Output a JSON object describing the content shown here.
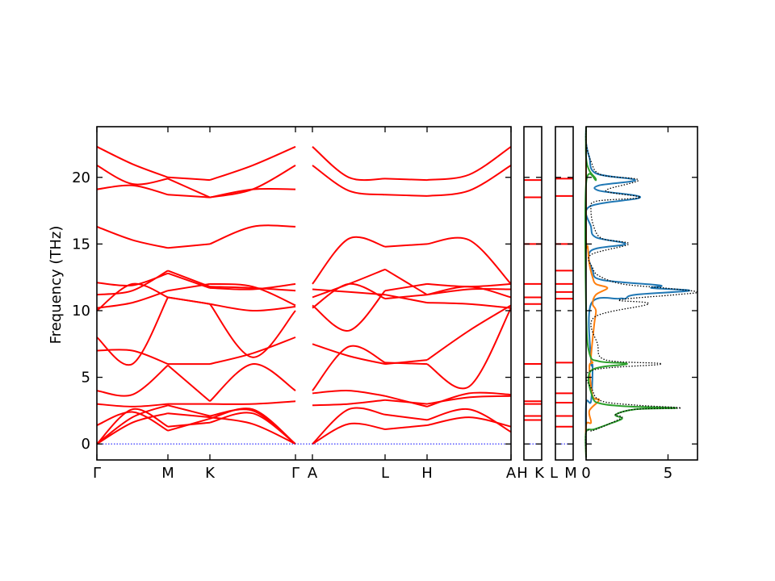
{
  "chart_data": {
    "type": "line",
    "title": "",
    "ylabel": "Frequency (THz)",
    "ylim": [
      -1.2,
      23.8
    ],
    "yticks": [
      0,
      5,
      10,
      15,
      20
    ],
    "colors": {
      "bands": "#ff0000",
      "zero_line": "#0000ff",
      "dos_total": "#000000",
      "dos_1": "#1f77b4",
      "dos_2": "#ff7f0e",
      "dos_3": "#2ca02c"
    },
    "band_panels": [
      {
        "xticks": [
          "Γ",
          "M",
          "K",
          "Γ",
          "A",
          "L",
          "H",
          "A"
        ],
        "segments": [
          {
            "from": "Γ",
            "to": "M",
            "bands": [
              [
                0,
                1.6,
                2.3
              ],
              [
                0,
                2.0,
                2.9
              ],
              [
                0,
                2.6,
                1.3
              ],
              [
                1.4,
                2.4,
                1.0
              ],
              [
                3.0,
                2.8,
                3.0
              ],
              [
                4.0,
                3.7,
                5.9
              ],
              [
                7.0,
                7.0,
                6.0
              ],
              [
                8.0,
                6.0,
                11.0
              ],
              [
                10.0,
                12.0,
                11.0
              ],
              [
                10.2,
                10.6,
                11.5
              ],
              [
                11.2,
                11.5,
                13.0
              ],
              [
                12.1,
                11.9,
                12.8
              ],
              [
                16.3,
                15.3,
                14.7
              ],
              [
                19.1,
                19.4,
                18.7
              ],
              [
                20.9,
                19.5,
                19.9
              ],
              [
                22.3,
                21.0,
                20.0
              ]
            ]
          },
          {
            "from": "M",
            "to": "K",
            "bands": [
              [
                2.3,
                2.0
              ],
              [
                2.9,
                2.1
              ],
              [
                1.3,
                1.6
              ],
              [
                1.0,
                1.9
              ],
              [
                3.0,
                3.0
              ],
              [
                5.9,
                3.2
              ],
              [
                6.0,
                6.0
              ],
              [
                11.0,
                10.5
              ],
              [
                11.0,
                10.5
              ],
              [
                11.5,
                12.0
              ],
              [
                13.0,
                11.8
              ],
              [
                12.8,
                11.7
              ],
              [
                14.7,
                15.0
              ],
              [
                18.7,
                18.5
              ],
              [
                19.9,
                18.5
              ],
              [
                20.0,
                19.8
              ]
            ]
          },
          {
            "from": "K",
            "to": "Γ",
            "bands": [
              [
                2.0,
                1.5,
                0
              ],
              [
                2.1,
                2.5,
                0
              ],
              [
                1.6,
                2.3,
                0
              ],
              [
                1.9,
                2.6,
                0
              ],
              [
                3.0,
                3.0,
                3.2
              ],
              [
                3.2,
                6.0,
                4.0
              ],
              [
                6.0,
                6.8,
                8.0
              ],
              [
                10.5,
                6.5,
                10.0
              ],
              [
                10.5,
                10.0,
                10.3
              ],
              [
                12.0,
                11.8,
                10.4
              ],
              [
                11.8,
                11.7,
                11.5
              ],
              [
                11.7,
                11.6,
                12.0
              ],
              [
                15.0,
                16.3,
                16.3
              ],
              [
                18.5,
                19.1,
                19.1
              ],
              [
                18.5,
                19.1,
                20.9
              ],
              [
                19.8,
                20.9,
                22.3
              ]
            ]
          },
          {
            "from": "A",
            "to": "L",
            "bands": [
              [
                0,
                2.6,
                2.2
              ],
              [
                0,
                1.5,
                1.1
              ],
              [
                2.9,
                3.0,
                3.3
              ],
              [
                3.8,
                4.0,
                3.6
              ],
              [
                4.0,
                7.3,
                6.1
              ],
              [
                7.5,
                6.6,
                6.0
              ],
              [
                10.2,
                12.0,
                10.9
              ],
              [
                10.4,
                8.5,
                11.5
              ],
              [
                11.0,
                12.0,
                13.1
              ],
              [
                11.6,
                11.4,
                11.2
              ],
              [
                12.0,
                15.4,
                14.8
              ],
              [
                22.3,
                20.0,
                19.9
              ],
              [
                20.9,
                19.0,
                18.7
              ]
            ]
          },
          {
            "from": "L",
            "to": "H",
            "bands": [
              [
                2.2,
                1.8
              ],
              [
                1.1,
                1.4
              ],
              [
                3.3,
                3.0
              ],
              [
                3.6,
                2.8
              ],
              [
                6.1,
                6.0
              ],
              [
                6.0,
                6.3
              ],
              [
                10.9,
                11.2
              ],
              [
                11.5,
                12.0
              ],
              [
                13.1,
                11.2
              ],
              [
                11.2,
                10.6
              ],
              [
                14.8,
                15.0
              ],
              [
                19.9,
                19.8
              ],
              [
                18.7,
                18.6
              ]
            ]
          },
          {
            "from": "H",
            "to": "A",
            "bands": [
              [
                1.8,
                2.6,
                0.9
              ],
              [
                1.4,
                2.0,
                1.3
              ],
              [
                3.0,
                3.5,
                3.6
              ],
              [
                2.8,
                3.8,
                3.7
              ],
              [
                6.0,
                4.3,
                10.2
              ],
              [
                6.3,
                8.5,
                10.4
              ],
              [
                11.2,
                11.8,
                11.0
              ],
              [
                12.0,
                11.8,
                12.0
              ],
              [
                11.2,
                11.6,
                11.6
              ],
              [
                10.6,
                10.5,
                10.2
              ],
              [
                15.0,
                15.3,
                12.0
              ],
              [
                19.8,
                20.2,
                22.3
              ],
              [
                18.6,
                19.0,
                20.9
              ]
            ]
          }
        ]
      },
      {
        "xticks": [
          "L",
          "M"
        ],
        "flat_levels": [
          0,
          1.3,
          2.1,
          3.1,
          3.8,
          6.1,
          10.9,
          11.4,
          12.0,
          13.0,
          15.0,
          18.6,
          19.9
        ]
      },
      {
        "xticks": [
          "H",
          "K"
        ],
        "flat_levels": [
          0,
          1.8,
          2.1,
          3.0,
          3.2,
          6.0,
          10.5,
          11.0,
          12.0,
          15.0,
          18.5,
          19.8
        ]
      }
    ],
    "dos_panel": {
      "xticks": [
        0,
        5
      ],
      "xlim": [
        0,
        6.8
      ],
      "series": [
        {
          "color_key": "dos_total",
          "style": "dotted",
          "points": [
            [
              0,
              -1
            ],
            [
              0,
              0.9
            ],
            [
              0.4,
              1.0
            ],
            [
              1.4,
              1.5
            ],
            [
              2.2,
              2.0
            ],
            [
              1.8,
              2.2
            ],
            [
              3.0,
              2.6
            ],
            [
              5.8,
              2.7
            ],
            [
              3.2,
              2.9
            ],
            [
              1.0,
              3.2
            ],
            [
              0.4,
              4.0
            ],
            [
              0.3,
              5.5
            ],
            [
              4.6,
              6.0
            ],
            [
              1.2,
              6.3
            ],
            [
              0.7,
              7.5
            ],
            [
              0.5,
              9.5
            ],
            [
              3.8,
              10.5
            ],
            [
              2.0,
              10.8
            ],
            [
              5.5,
              11.2
            ],
            [
              6.8,
              11.4
            ],
            [
              4.8,
              11.7
            ],
            [
              2.2,
              12.0
            ],
            [
              0.8,
              12.6
            ],
            [
              0.4,
              13.2
            ],
            [
              0.3,
              14.2
            ],
            [
              2.6,
              15.0
            ],
            [
              1.0,
              15.4
            ],
            [
              0.5,
              16.2
            ],
            [
              0.3,
              17.5
            ],
            [
              0.6,
              18.2
            ],
            [
              3.3,
              18.5
            ],
            [
              1.2,
              19.0
            ],
            [
              3.2,
              19.8
            ],
            [
              0.9,
              20.2
            ],
            [
              0.3,
              21.2
            ],
            [
              0,
              22.6
            ],
            [
              0,
              23.8
            ]
          ]
        },
        {
          "color_key": "dos_1",
          "style": "solid",
          "points": [
            [
              0,
              -1
            ],
            [
              0,
              3.0
            ],
            [
              0.3,
              3.2
            ],
            [
              0.4,
              5.8
            ],
            [
              0.3,
              6.2
            ],
            [
              0.3,
              10.5
            ],
            [
              2.0,
              10.9
            ],
            [
              2.4,
              10.9
            ],
            [
              3.0,
              11.2
            ],
            [
              6.3,
              11.5
            ],
            [
              4.0,
              11.7
            ],
            [
              4.5,
              11.9
            ],
            [
              1.0,
              12.3
            ],
            [
              0.4,
              13.0
            ],
            [
              0.3,
              14.5
            ],
            [
              2.4,
              15.0
            ],
            [
              0.6,
              15.5
            ],
            [
              0.3,
              16.3
            ],
            [
              0.2,
              17.8
            ],
            [
              3.3,
              18.5
            ],
            [
              0.8,
              19.0
            ],
            [
              0.8,
              19.4
            ],
            [
              3.0,
              19.8
            ],
            [
              0.6,
              20.3
            ],
            [
              0.2,
              21.5
            ],
            [
              0,
              22.6
            ],
            [
              0,
              23.8
            ]
          ]
        },
        {
          "color_key": "dos_2",
          "style": "solid",
          "points": [
            [
              0,
              -1
            ],
            [
              0,
              1.4
            ],
            [
              0.3,
              1.6
            ],
            [
              0.2,
              2.5
            ],
            [
              0.8,
              3.3
            ],
            [
              0.4,
              3.6
            ],
            [
              0.2,
              5.8
            ],
            [
              0.4,
              6.1
            ],
            [
              0.3,
              6.5
            ],
            [
              0.5,
              9.0
            ],
            [
              0.6,
              10.0
            ],
            [
              0.4,
              10.5
            ],
            [
              0.6,
              11.2
            ],
            [
              1.3,
              11.7
            ],
            [
              0.6,
              12.0
            ],
            [
              0.4,
              12.5
            ],
            [
              0.2,
              13.5
            ],
            [
              0.1,
              14.8
            ],
            [
              0,
              15.5
            ],
            [
              0,
              23.8
            ]
          ]
        },
        {
          "color_key": "dos_3",
          "style": "solid",
          "points": [
            [
              0,
              -1
            ],
            [
              0,
              0.9
            ],
            [
              0.5,
              1.1
            ],
            [
              1.4,
              1.5
            ],
            [
              2.2,
              1.9
            ],
            [
              1.8,
              2.2
            ],
            [
              3.0,
              2.6
            ],
            [
              5.5,
              2.7
            ],
            [
              2.8,
              2.8
            ],
            [
              1.0,
              3.0
            ],
            [
              0.4,
              3.5
            ],
            [
              0.3,
              5.5
            ],
            [
              2.5,
              6.0
            ],
            [
              0.8,
              6.2
            ],
            [
              0.2,
              6.8
            ],
            [
              0,
              10.0
            ],
            [
              0,
              19.5
            ],
            [
              0.6,
              19.8
            ],
            [
              0.2,
              20.5
            ],
            [
              0,
              21.5
            ],
            [
              0,
              23.8
            ]
          ]
        }
      ]
    }
  }
}
